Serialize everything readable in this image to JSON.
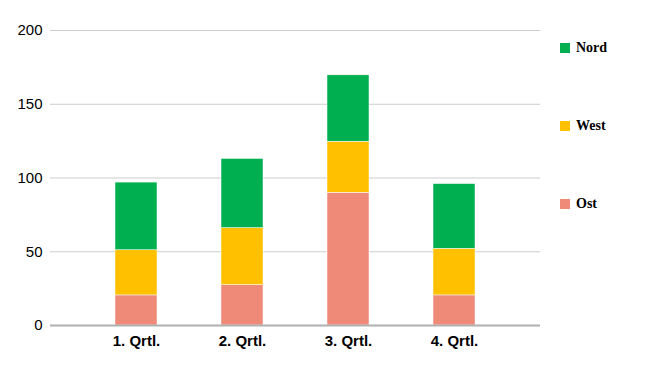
{
  "chart_data": {
    "type": "bar",
    "stacked": true,
    "categories": [
      "1. Qrtl.",
      "2. Qrtl.",
      "3. Qrtl.",
      "4. Qrtl."
    ],
    "series": [
      {
        "name": "Ost",
        "color": "#f08a78",
        "values": [
          20.4,
          27.4,
          90,
          20.4
        ]
      },
      {
        "name": "West",
        "color": "#ffc000",
        "values": [
          30.6,
          38.6,
          34.6,
          31.6
        ]
      },
      {
        "name": "Nord",
        "color": "#00b050",
        "values": [
          45.9,
          46.9,
          45,
          43.9
        ]
      }
    ],
    "ylim": [
      0,
      200
    ],
    "yticks": [
      0,
      50,
      100,
      150,
      200
    ],
    "grid": true,
    "legend": "right"
  }
}
